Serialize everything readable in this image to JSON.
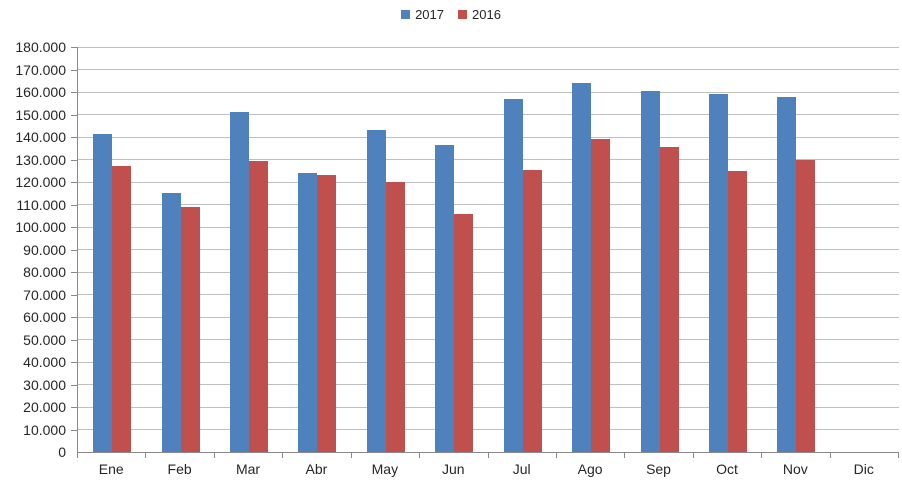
{
  "chart_data": {
    "type": "bar",
    "title": "",
    "xlabel": "",
    "ylabel": "",
    "categories": [
      "Ene",
      "Feb",
      "Mar",
      "Abr",
      "May",
      "Jun",
      "Jul",
      "Ago",
      "Sep",
      "Oct",
      "Nov",
      "Dic"
    ],
    "series": [
      {
        "name": "2017",
        "color": "#4F81BD",
        "values": [
          141500,
          115000,
          151000,
          124000,
          143000,
          136500,
          157000,
          164000,
          160500,
          159000,
          158000,
          null
        ]
      },
      {
        "name": "2016",
        "color": "#C0504D",
        "values": [
          127000,
          109000,
          129500,
          123000,
          120000,
          106000,
          125500,
          139000,
          135500,
          125000,
          130000,
          null
        ]
      }
    ],
    "ylim": [
      0,
      180000
    ],
    "y_tick_step": 10000,
    "y_tick_labels": [
      "0",
      "10.000",
      "20.000",
      "30.000",
      "40.000",
      "50.000",
      "60.000",
      "70.000",
      "80.000",
      "90.000",
      "100.000",
      "110.000",
      "120.000",
      "130.000",
      "140.000",
      "150.000",
      "160.000",
      "170.000",
      "180.000"
    ],
    "grid": "horizontal",
    "legend_position": "top-center",
    "colors": {
      "grid": "#BFBFBF",
      "axis": "#898989",
      "text": "#262626"
    }
  }
}
